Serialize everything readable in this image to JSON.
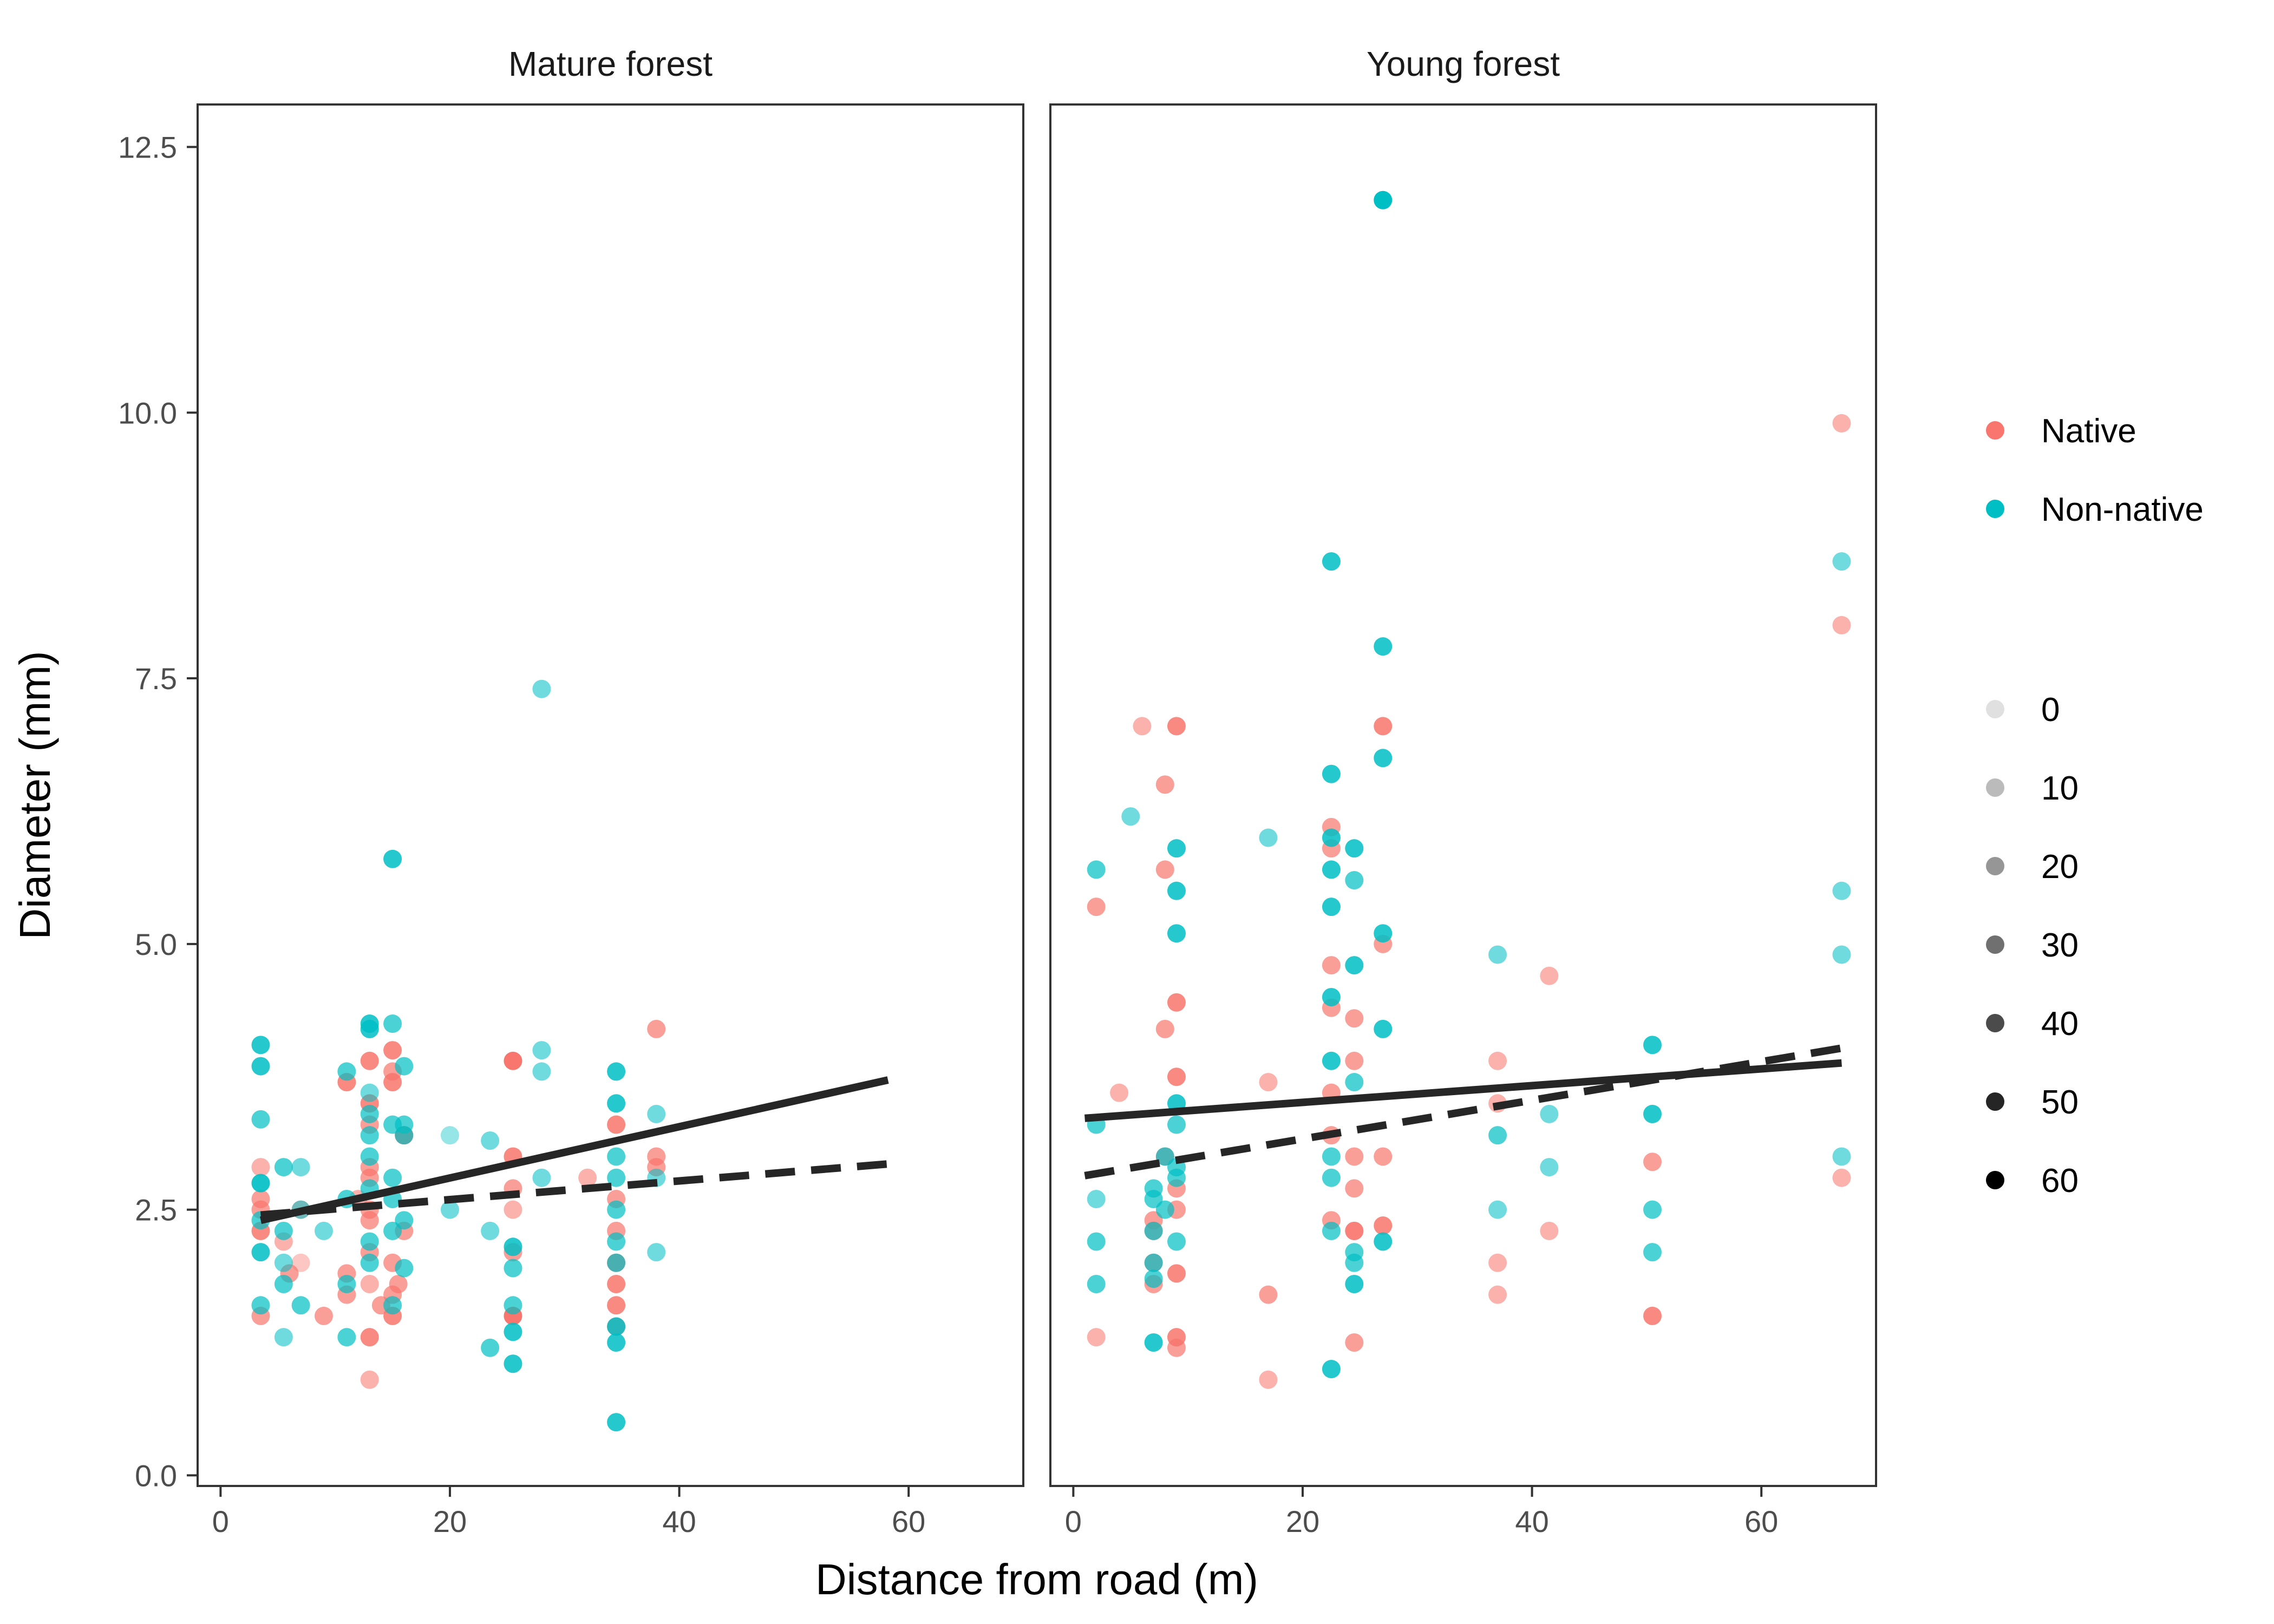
{
  "colors": {
    "native": "#F8766D",
    "non_native": "#00BFC4",
    "line": "#262626",
    "frame": "#333333",
    "tick": "#4d4d4d"
  },
  "chart_data": {
    "type": "scatter",
    "xlabel": "Distance from road (m)",
    "ylabel": "Diameter (mm)",
    "xlim": [
      -2,
      70
    ],
    "ylim": [
      -0.1,
      12.9
    ],
    "x_ticks": [
      0,
      20,
      40,
      60
    ],
    "y_ticks": [
      0.0,
      2.5,
      5.0,
      7.5,
      10.0,
      12.5
    ],
    "y_tick_labels": [
      "0.0",
      "2.5",
      "5.0",
      "7.5",
      "10.0",
      "12.5"
    ],
    "grid": false,
    "legend_position": "right",
    "legend_color": {
      "entries": [
        {
          "label": "Native",
          "color": "#F8766D"
        },
        {
          "label": "Non-native",
          "color": "#00BFC4"
        }
      ]
    },
    "legend_alpha": {
      "entries": [
        "0",
        "10",
        "20",
        "30",
        "40",
        "50",
        "60"
      ]
    },
    "panels": [
      {
        "title": "Mature forest",
        "lines": [
          {
            "style": "solid",
            "x": [
              3.5,
              58.2
            ],
            "y": [
              2.4,
              3.72
            ]
          },
          {
            "style": "dashed",
            "x": [
              3.5,
              58.2
            ],
            "y": [
              2.45,
              2.93
            ]
          }
        ],
        "series": [
          {
            "name": "Native",
            "x": [
              3.5,
              3.5,
              3.5,
              3.5,
              5.5,
              6,
              7,
              9,
              11,
              12,
              13,
              13,
              14,
              15,
              15,
              15,
              16,
              16,
              13,
              13,
              13,
              25.5,
              25.5,
              25.5,
              25.5,
              34.5,
              34.5,
              34.5,
              34.5,
              34.5,
              38,
              32,
              13,
              15.5,
              7,
              13,
              11,
              15,
              16,
              34.5,
              13,
              13,
              25.5,
              38,
              11,
              13,
              15,
              34.5,
              38,
              25.5,
              3.5,
              13,
              15
            ],
            "y": [
              1.5,
              2.3,
              2.6,
              2.9,
              2.2,
              1.9,
              2.0,
              1.5,
              1.9,
              2.6,
              1.3,
              2.1,
              1.6,
              1.5,
              3.7,
              4.0,
              2.3,
              3.2,
              2.9,
              2.4,
              3.9,
              3.9,
              3.0,
              2.7,
              1.5,
              3.3,
              2.6,
              2.0,
              1.8,
              1.4,
              4.2,
              2.8,
              2.5,
              1.8,
              2.5,
              0.9,
              3.7,
              2.0,
              3.2,
              2.3,
              1.8,
              3.5,
              2.5,
              2.9,
              1.7,
              2.8,
              3.8,
              1.6,
              3.0,
              2.1,
              2.5,
              3.3,
              1.7
            ],
            "alpha": [
              40,
              50,
              40,
              30,
              30,
              40,
              20,
              40,
              40,
              30,
              50,
              40,
              40,
              50,
              50,
              50,
              40,
              40,
              40,
              40,
              50,
              60,
              50,
              40,
              60,
              50,
              40,
              50,
              50,
              50,
              40,
              30,
              40,
              40,
              30,
              30,
              50,
              40,
              40,
              40,
              30,
              50,
              30,
              40,
              40,
              40,
              40,
              50,
              40,
              40,
              40,
              40,
              40
            ]
          },
          {
            "name": "Non-native",
            "x": [
              3.5,
              3.5,
              3.5,
              3.5,
              3.5,
              3.5,
              5.5,
              5.5,
              5.5,
              5.5,
              7,
              9,
              11,
              11,
              13,
              13,
              13,
              13,
              13,
              15,
              15,
              15,
              15,
              16,
              16,
              16,
              16,
              20,
              23.5,
              23.5,
              25.5,
              25.5,
              25.5,
              25.5,
              28,
              28,
              34.5,
              34.5,
              34.5,
              34.5,
              34.5,
              34.5,
              34.5,
              38,
              38,
              11,
              13,
              15,
              7,
              3.5,
              13,
              15,
              25.5,
              34.5,
              16,
              20,
              23.5,
              28,
              34.5,
              3.5,
              13,
              7,
              11,
              15,
              28,
              34.5,
              38,
              5.5,
              13
            ],
            "y": [
              4.05,
              3.85,
              3.35,
              2.75,
              2.1,
              1.6,
              2.9,
              2.0,
              1.8,
              1.3,
              2.5,
              2.3,
              3.8,
              1.3,
              4.25,
              4.2,
              3.4,
              3.0,
              2.2,
              5.8,
              4.25,
              3.3,
              2.8,
              3.85,
              3.3,
              2.4,
              1.95,
              3.2,
              3.15,
              1.2,
              2.15,
              1.35,
              1.05,
              1.95,
              7.4,
              2.8,
              3.8,
              3.5,
              2.8,
              2.0,
              1.4,
              1.25,
              0.5,
              3.4,
              2.1,
              1.8,
              2.0,
              2.6,
              2.9,
              2.75,
              3.2,
              1.6,
              1.6,
              3.0,
              3.2,
              2.5,
              2.3,
              3.8,
              2.5,
              2.4,
              2.7,
              1.6,
              2.6,
              2.3,
              4.0,
              2.2,
              2.8,
              2.3,
              3.6
            ],
            "alpha": [
              50,
              50,
              40,
              40,
              50,
              40,
              40,
              30,
              40,
              30,
              30,
              30,
              40,
              40,
              50,
              50,
              40,
              40,
              40,
              50,
              40,
              40,
              40,
              40,
              40,
              40,
              40,
              20,
              30,
              40,
              50,
              50,
              50,
              40,
              30,
              30,
              50,
              50,
              40,
              40,
              50,
              50,
              50,
              30,
              30,
              40,
              40,
              40,
              30,
              40,
              40,
              40,
              40,
              40,
              40,
              30,
              30,
              30,
              40,
              40,
              40,
              40,
              40,
              40,
              30,
              40,
              30,
              40,
              30
            ]
          }
        ]
      },
      {
        "title": "Young forest",
        "lines": [
          {
            "style": "solid",
            "x": [
              1,
              67
            ],
            "y": [
              3.36,
              3.88
            ]
          },
          {
            "style": "dashed",
            "x": [
              1,
              67
            ],
            "y": [
              2.82,
              4.02
            ]
          }
        ],
        "series": [
          {
            "name": "Native",
            "x": [
              2,
              2,
              4,
              6,
              8,
              8,
              8,
              9,
              9,
              9,
              9,
              9,
              9,
              9,
              7,
              7,
              7,
              17,
              17,
              17,
              22.5,
              22.5,
              22.5,
              22.5,
              22.5,
              22.5,
              24.5,
              24.5,
              24.5,
              24.5,
              24.5,
              24.5,
              27,
              27,
              27,
              27,
              37,
              37,
              37,
              41.5,
              41.5,
              50.5,
              50.5,
              67,
              67,
              67,
              8,
              9,
              22.5,
              24.5,
              37,
              7
            ],
            "y": [
              5.35,
              1.3,
              3.6,
              7.05,
              6.5,
              5.7,
              4.2,
              7.05,
              4.45,
              3.75,
              2.5,
              1.3,
              1.2,
              1.9,
              2.0,
              1.8,
              2.3,
              1.7,
              0.9,
              3.7,
              6.1,
              5.9,
              4.8,
              4.4,
              3.2,
              2.4,
              4.3,
              3.9,
              3.0,
              2.7,
              1.25,
              2.3,
              7.05,
              5.0,
              3.0,
              2.35,
              2.0,
              1.7,
              3.9,
              4.7,
              2.3,
              2.95,
              1.5,
              9.9,
              8.0,
              2.8,
              3.0,
              2.7,
              3.6,
              2.3,
              3.5,
              2.4
            ],
            "alpha": [
              40,
              30,
              30,
              30,
              40,
              40,
              40,
              50,
              50,
              50,
              40,
              50,
              40,
              50,
              40,
              40,
              40,
              40,
              30,
              30,
              40,
              40,
              40,
              40,
              40,
              40,
              40,
              40,
              40,
              40,
              40,
              40,
              50,
              40,
              40,
              50,
              30,
              30,
              30,
              30,
              30,
              40,
              50,
              30,
              30,
              30,
              40,
              40,
              40,
              40,
              30,
              40
            ]
          },
          {
            "name": "Non-native",
            "x": [
              2,
              2,
              2,
              2,
              5,
              7,
              7,
              7,
              7,
              7,
              9,
              9,
              9,
              9,
              9,
              9,
              8,
              8,
              22.5,
              22.5,
              22.5,
              22.5,
              22.5,
              22.5,
              22.5,
              22.5,
              22.5,
              24.5,
              24.5,
              24.5,
              24.5,
              24.5,
              24.5,
              27,
              27,
              27,
              27,
              27,
              17,
              37,
              37,
              37,
              41.5,
              41.5,
              50.5,
              50.5,
              50.5,
              50.5,
              67,
              67,
              67,
              67,
              22.5,
              24.5,
              9,
              7,
              2,
              22.5,
              27,
              9
            ],
            "y": [
              5.7,
              3.3,
              2.2,
              1.8,
              6.2,
              2.6,
              2.3,
              2.0,
              1.85,
              1.25,
              5.9,
              5.5,
              5.1,
              3.5,
              2.8,
              2.2,
              3.0,
              2.5,
              8.6,
              6.6,
              6.0,
              5.7,
              5.35,
              4.5,
              3.0,
              2.3,
              1.0,
              5.9,
              5.6,
              4.8,
              3.7,
              2.1,
              1.8,
              12.0,
              7.8,
              6.75,
              5.1,
              4.2,
              6.0,
              4.9,
              3.2,
              2.5,
              3.4,
              2.9,
              4.05,
              3.4,
              2.5,
              2.1,
              8.6,
              5.5,
              4.9,
              3.0,
              2.8,
              2.0,
              3.3,
              2.7,
              2.6,
              3.9,
              2.2,
              2.9
            ],
            "alpha": [
              40,
              40,
              40,
              40,
              30,
              40,
              40,
              40,
              40,
              50,
              50,
              50,
              50,
              50,
              40,
              40,
              40,
              40,
              50,
              50,
              50,
              50,
              50,
              50,
              40,
              40,
              50,
              50,
              40,
              50,
              40,
              40,
              50,
              60,
              50,
              50,
              50,
              50,
              30,
              30,
              40,
              30,
              30,
              30,
              50,
              50,
              40,
              40,
              30,
              30,
              30,
              30,
              40,
              40,
              40,
              40,
              30,
              50,
              50,
              40
            ]
          }
        ]
      }
    ]
  }
}
